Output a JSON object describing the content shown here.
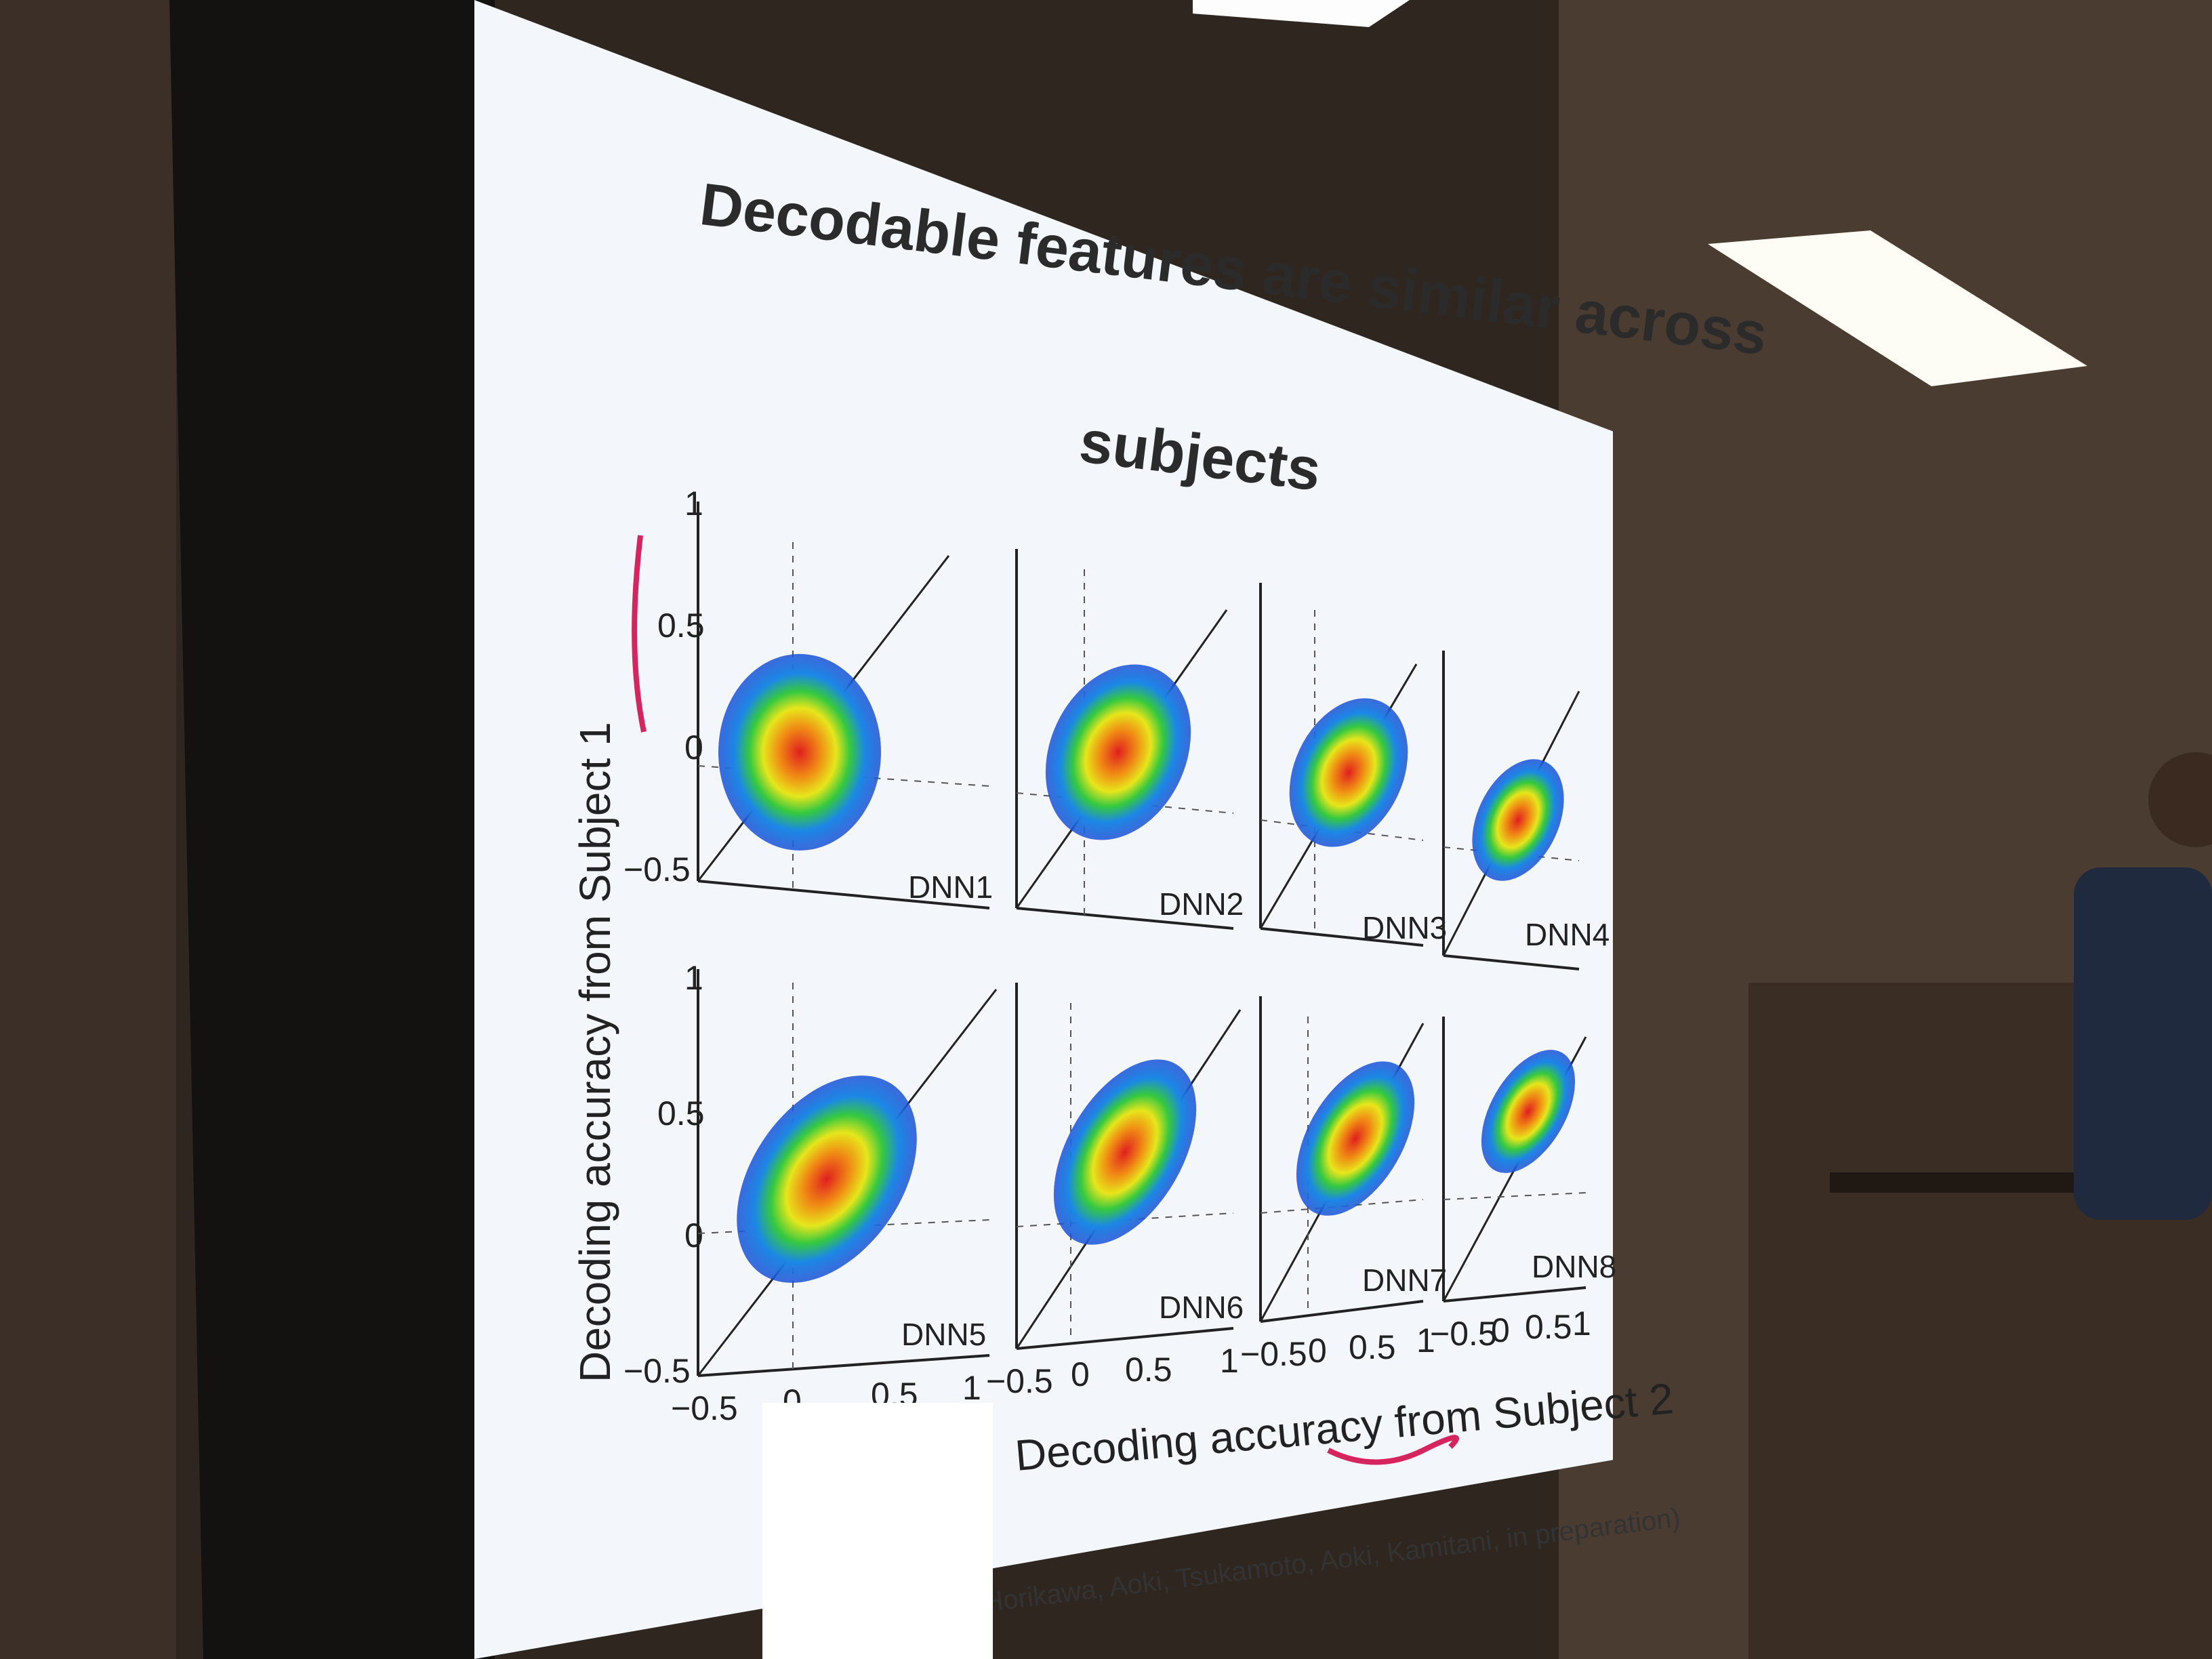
{
  "slide": {
    "title_line1": "Decodable features are similar across",
    "title_line2": "subjects",
    "y_label": "Decoding accuracy from Subject 1",
    "x_label": "Decoding accuracy from Subject 2",
    "citation": "(Horikawa, Aoki, Tsukamoto, Aoki, Kamitani, in preparation)",
    "panels": [
      "DNN1",
      "DNN2",
      "DNN3",
      "DNN4",
      "DNN5",
      "DNN6",
      "DNN7",
      "DNN8"
    ],
    "y_ticks": [
      "1",
      "0.5",
      "0",
      "−0.5"
    ],
    "x_ticks": [
      "−0.5",
      "0",
      "0.5",
      "1"
    ]
  },
  "colors": {
    "slide_bg": "#f3f6fb",
    "room": "#3a2e25",
    "ceiling_light": "#ffffff",
    "annotation": "#d6245e"
  }
}
